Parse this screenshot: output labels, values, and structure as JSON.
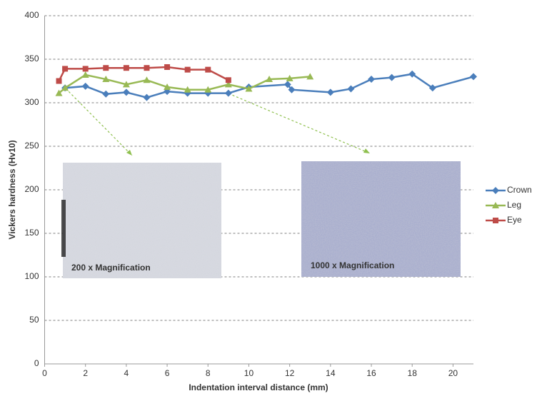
{
  "chart_data": {
    "type": "line",
    "x_label": "Indentation interval distance (mm)",
    "y_label": "Vickers hardness (Hv10)",
    "xlim": [
      0,
      21
    ],
    "xticks": [
      0,
      2,
      4,
      6,
      8,
      10,
      12,
      14,
      16,
      18,
      20
    ],
    "ylim": [
      0,
      400
    ],
    "yticks": [
      0,
      50,
      100,
      150,
      200,
      250,
      300,
      350,
      400
    ],
    "grid": true,
    "legend": "right",
    "series": [
      {
        "name": "Crown",
        "color": "#4a7ebb",
        "marker": "diamond",
        "x": [
          1,
          2,
          3,
          4,
          5,
          6,
          7,
          8,
          9,
          10,
          11.9,
          12.1,
          14,
          15,
          16,
          17,
          18,
          19,
          21
        ],
        "values": [
          317,
          319,
          310,
          312,
          306,
          313,
          311,
          311,
          311,
          318,
          321,
          315,
          312,
          316,
          327,
          329,
          333,
          317,
          330
        ]
      },
      {
        "name": "Leg",
        "color": "#98b954",
        "marker": "triangle",
        "x": [
          0.7,
          1,
          2,
          3,
          4,
          5,
          6,
          7,
          8,
          9,
          10,
          11,
          12,
          13
        ],
        "values": [
          311,
          317,
          332,
          327,
          321,
          326,
          318,
          315,
          315,
          321,
          316,
          327,
          328,
          330
        ]
      },
      {
        "name": "Eye",
        "color": "#be4b48",
        "marker": "square",
        "x": [
          0.7,
          1,
          2,
          3,
          4,
          5,
          6,
          7,
          8,
          9
        ],
        "values": [
          325,
          339,
          339,
          340,
          340,
          340,
          341,
          338,
          338,
          326
        ]
      }
    ],
    "annotations": [
      "200 x Magnification",
      "1000 x Magnification"
    ]
  }
}
